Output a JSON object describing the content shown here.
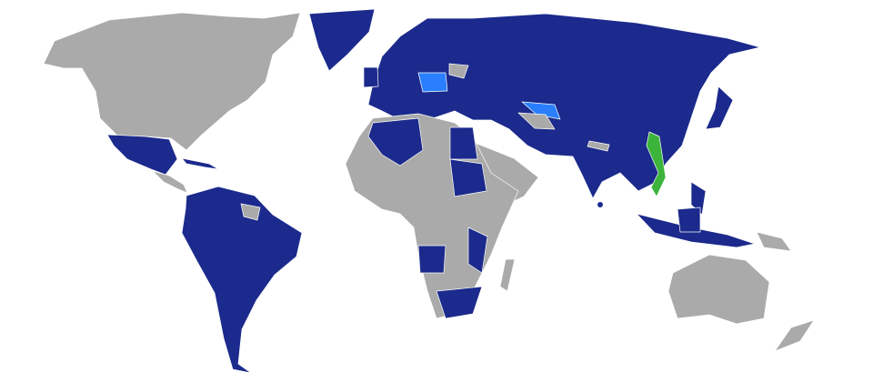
{
  "map": {
    "colors": {
      "primary": "#1b2a8c",
      "secondary": "#2a7fff",
      "highlight": "#3cb43c",
      "other": "#aaaaaa",
      "ocean": "#ffffff"
    }
  }
}
